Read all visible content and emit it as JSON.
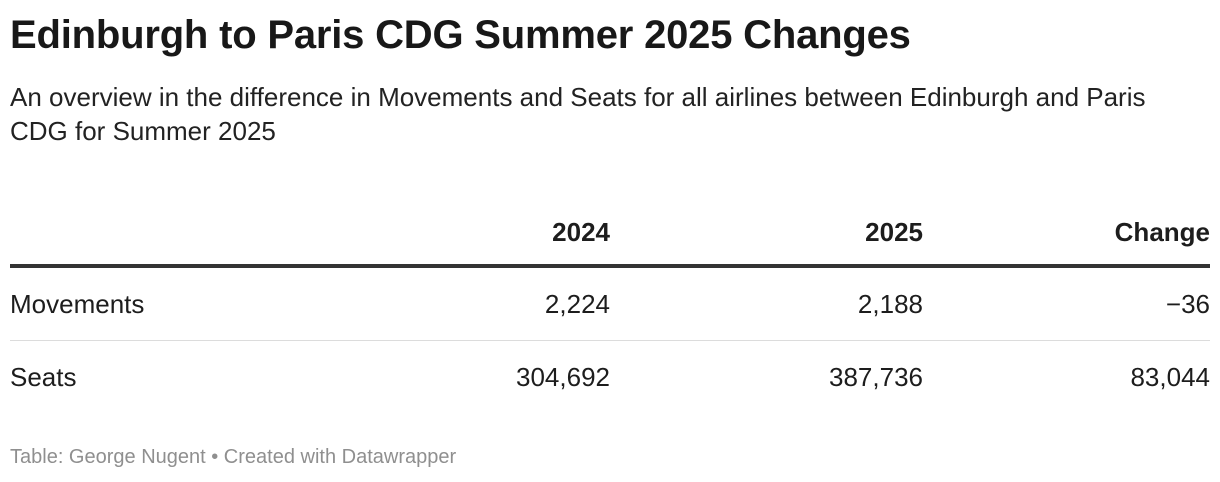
{
  "title": "Edinburgh to Paris CDG Summer 2025 Changes",
  "subtitle": "An overview in the difference in Movements and Seats for all airlines between Edinburgh and Paris CDG for Summer 2025",
  "chart_data": {
    "type": "table",
    "columns": [
      "",
      "2024",
      "2025",
      "Change"
    ],
    "rows": [
      {
        "label": "Movements",
        "y2024": "2,224",
        "y2025": "2,188",
        "change": "−36"
      },
      {
        "label": "Seats",
        "y2024": "304,692",
        "y2025": "387,736",
        "change": "83,044"
      }
    ]
  },
  "footer": {
    "text": "Table: George Nugent • Created with Datawrapper"
  }
}
